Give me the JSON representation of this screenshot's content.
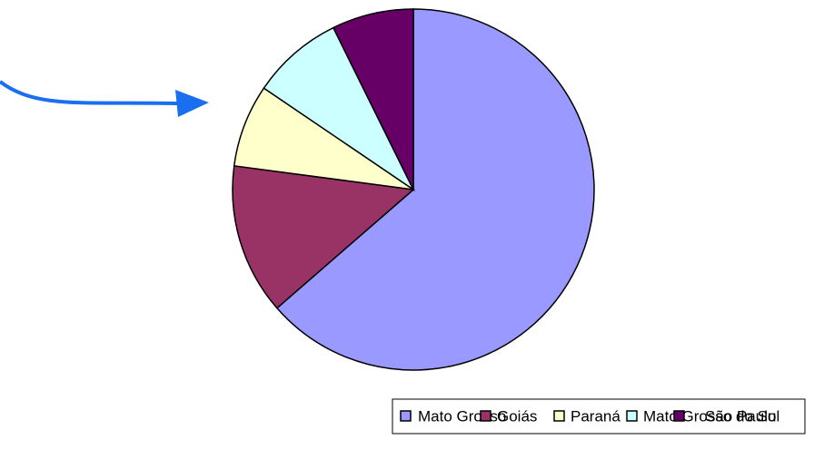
{
  "chart_data": {
    "type": "pie",
    "categories": [
      "Mato Grosso",
      "Goiás",
      "Paraná",
      "Mato Grosso do Sul",
      "São Paulo"
    ],
    "values": [
      63.6,
      13.5,
      7.4,
      8.2,
      7.3
    ],
    "colors": [
      "#9999ff",
      "#993366",
      "#ffffcc",
      "#ccffff",
      "#660066"
    ],
    "legend": "bottom"
  }
}
